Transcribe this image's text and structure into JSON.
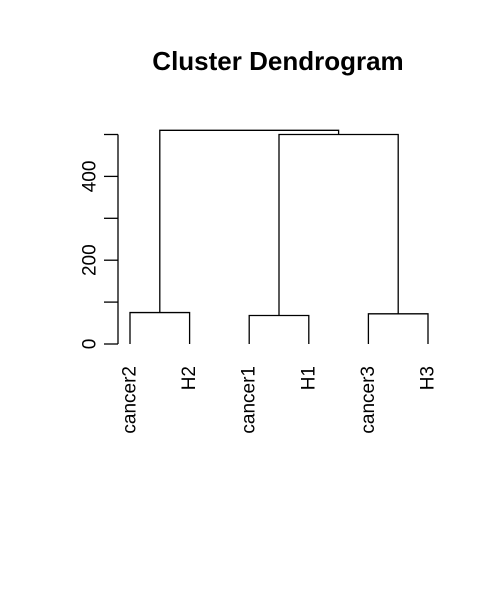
{
  "chart_data": {
    "type": "dendrogram",
    "title": "Cluster Dendrogram",
    "xlabel": "",
    "ylabel": "",
    "ylim": [
      0,
      520
    ],
    "yticks": [
      0,
      100,
      200,
      300,
      400,
      500
    ],
    "ytick_labels": [
      "0",
      "",
      "200",
      "",
      "400",
      ""
    ],
    "leaves": [
      "cancer2",
      "H2",
      "cancer1",
      "H1",
      "cancer3",
      "H3"
    ],
    "leaf_baseline": 75,
    "merges": [
      {
        "left": "cancer2",
        "right": "H2",
        "height": 75
      },
      {
        "left": "cancer1",
        "right": "H1",
        "height": 68
      },
      {
        "left": "cancer3",
        "right": "H3",
        "height": 72
      },
      {
        "left": "cancer1+H1",
        "right": "cancer3+H3",
        "height": 500
      },
      {
        "left": "cancer2+H2",
        "right": "cancer1+H1+cancer3+H3",
        "height": 510
      }
    ]
  }
}
